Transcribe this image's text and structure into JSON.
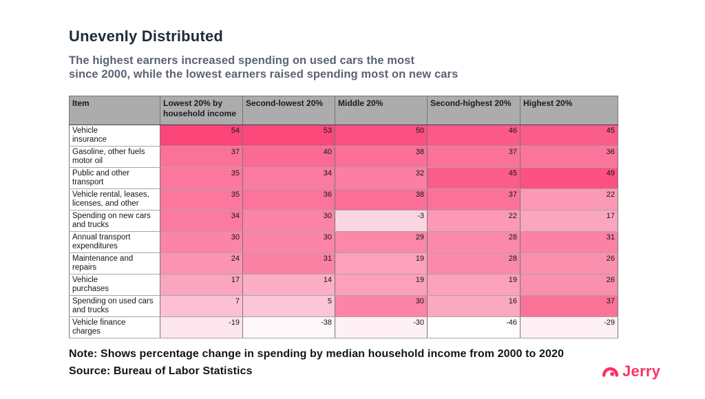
{
  "colors": {
    "accent_pink": "#FB4579",
    "title_color": "#222B3A",
    "subtitle_color": "#5B6273",
    "header_bg": "#ACACAC",
    "logo_pink": "#FA3364"
  },
  "header": {
    "title": "Unevenly Distributed",
    "subtitle": "The highest earners increased spending on used cars the most\nsince 2000, while the lowest earners raised spending most on new cars"
  },
  "chart_data": {
    "type": "heatmap",
    "title": "Unevenly Distributed",
    "subtitle": "The highest earners increased spending on used cars the most since 2000, while the lowest earners raised spending most on new cars",
    "columns": [
      "Item",
      "Lowest 20% by household income",
      "Second-lowest 20%",
      "Middle 20%",
      "Second-highest 20%",
      "Highest 20%"
    ],
    "rows": [
      {
        "item": "Vehicle\ninsurance",
        "values": [
          54,
          53,
          50,
          46,
          45
        ]
      },
      {
        "item": "Gasoline, other fuels\nmotor oil",
        "values": [
          37,
          40,
          38,
          37,
          36
        ]
      },
      {
        "item": "Public and other\ntransport",
        "values": [
          35,
          34,
          32,
          45,
          49
        ]
      },
      {
        "item": "Vehicle rental, leases,\nlicenses, and other",
        "values": [
          35,
          36,
          38,
          37,
          22
        ]
      },
      {
        "item": "Spending on new cars\nand trucks",
        "values": [
          34,
          30,
          -3,
          22,
          17
        ]
      },
      {
        "item": "Annual transport\nexpenditures",
        "values": [
          30,
          30,
          29,
          28,
          31
        ]
      },
      {
        "item": "Maintenance and\nrepairs",
        "values": [
          24,
          31,
          19,
          28,
          26
        ]
      },
      {
        "item": "Vehicle\npurchases",
        "values": [
          17,
          14,
          19,
          19,
          26
        ]
      },
      {
        "item": "Spending on used cars\nand trucks",
        "values": [
          7,
          5,
          30,
          16,
          37
        ]
      },
      {
        "item": "Vehicle finance\ncharges",
        "values": [
          -19,
          -38,
          -30,
          -46,
          -29
        ]
      }
    ],
    "color_scale": {
      "min": -46,
      "mid": 0,
      "max": 54,
      "min_color": "#FFFFFF",
      "mid_color": "#FBD3E0",
      "max_color": "#FB4579"
    }
  },
  "footer": {
    "note": "Note: Shows percentage change in spending by median household income from 2000 to 2020",
    "source": "Source: Bureau of Labor Statistics",
    "logo_text": "Jerry"
  }
}
